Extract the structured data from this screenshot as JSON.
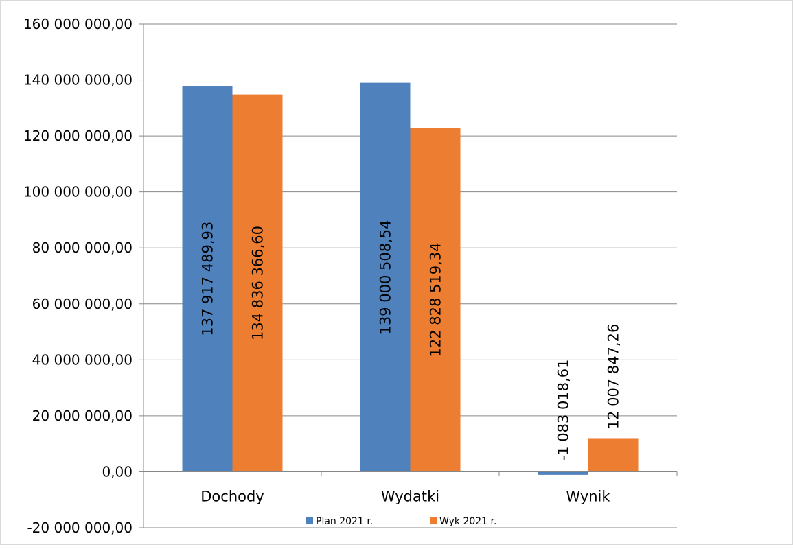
{
  "chart_data": {
    "type": "bar",
    "categories": [
      "Dochody",
      "Wydatki",
      "Wynik"
    ],
    "series": [
      {
        "name": "Plan 2021 r.",
        "color": "#4F81BD",
        "values": [
          137917489.93,
          139000508.54,
          -1083018.61
        ],
        "labels": [
          "137 917 489,93",
          "139 000 508,54",
          "-1 083 018,61"
        ]
      },
      {
        "name": "Wyk 2021 r.",
        "color": "#ED7D31",
        "values": [
          134836366.6,
          122828519.34,
          12007847.26
        ],
        "labels": [
          "134 836 366,60",
          "122 828 519,34",
          "12 007 847,26"
        ]
      }
    ],
    "yticks": [
      {
        "value": 160000000,
        "label": "160 000 000,00"
      },
      {
        "value": 140000000,
        "label": "140 000 000,00"
      },
      {
        "value": 120000000,
        "label": "120 000 000,00"
      },
      {
        "value": 100000000,
        "label": "100 000 000,00"
      },
      {
        "value": 80000000,
        "label": "80 000 000,00"
      },
      {
        "value": 60000000,
        "label": "60 000 000,00"
      },
      {
        "value": 40000000,
        "label": "40 000 000,00"
      },
      {
        "value": 20000000,
        "label": "20 000 000,00"
      },
      {
        "value": 0,
        "label": "0,00"
      },
      {
        "value": -20000000,
        "label": "-20 000 000,00"
      }
    ],
    "ylim": [
      -20000000,
      160000000
    ],
    "grid": true,
    "legend": "bottom",
    "title": "",
    "xlabel": "",
    "ylabel": ""
  }
}
